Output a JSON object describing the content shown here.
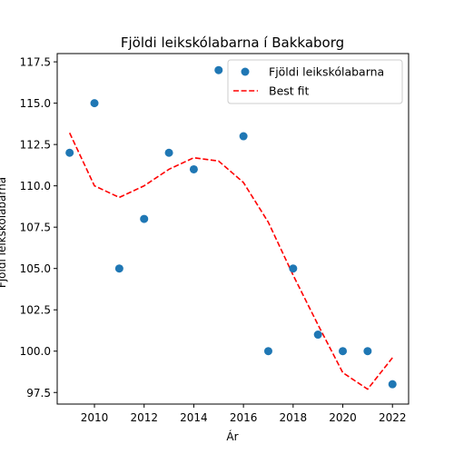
{
  "chart_data": {
    "type": "scatter",
    "title": "Fjöldi leikskólabarna í Bakkaborg",
    "xlabel": "Ár",
    "ylabel": "Fjöldi leikskólabarna",
    "xlim": [
      2008.5,
      2022.65
    ],
    "ylim": [
      96.8,
      118.0
    ],
    "xticks": [
      2010,
      2012,
      2014,
      2016,
      2018,
      2020,
      2022
    ],
    "yticks": [
      97.5,
      100.0,
      102.5,
      105.0,
      107.5,
      110.0,
      112.5,
      115.0,
      117.5
    ],
    "ytick_labels": [
      "97.5",
      "100.0",
      "102.5",
      "105.0",
      "107.5",
      "110.0",
      "112.5",
      "115.0",
      "117.5"
    ],
    "grid": false,
    "legend_position": "top-right",
    "series": [
      {
        "name": "Fjöldi leikskólabarna",
        "kind": "scatter",
        "color": "#1f77b4",
        "x": [
          2009,
          2010,
          2011,
          2012,
          2013,
          2014,
          2015,
          2016,
          2017,
          2018,
          2019,
          2020,
          2021,
          2022
        ],
        "y": [
          112,
          115,
          105,
          108,
          112,
          111,
          117,
          113,
          100,
          105,
          101,
          100,
          100,
          98
        ]
      },
      {
        "name": "Best fit",
        "kind": "line",
        "style": "dashed",
        "color": "#ff0000",
        "x": [
          2009,
          2010,
          2011,
          2012,
          2013,
          2014,
          2015,
          2016,
          2017,
          2018,
          2019,
          2020,
          2021,
          2022
        ],
        "y": [
          113.2,
          110.0,
          109.3,
          110.0,
          111.0,
          111.7,
          111.5,
          110.2,
          107.8,
          104.6,
          101.6,
          98.7,
          97.7,
          99.6
        ]
      }
    ]
  }
}
